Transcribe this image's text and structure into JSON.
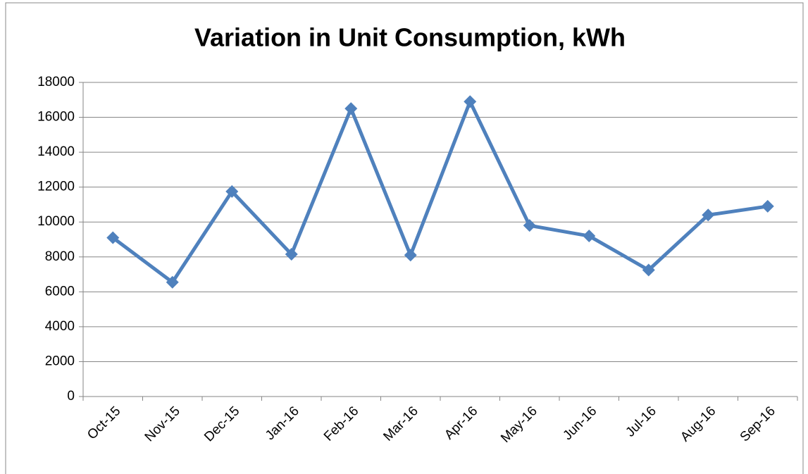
{
  "chart_data": {
    "type": "line",
    "title": "Variation in Unit Consumption, kWh",
    "categories": [
      "Oct-15",
      "Nov-15",
      "Dec-15",
      "Jan-16",
      "Feb-16",
      "Mar-16",
      "Apr-16",
      "May-16",
      "Jun-16",
      "Jul-16",
      "Aug-16",
      "Sep-16"
    ],
    "values": [
      9100,
      6550,
      11750,
      8150,
      16500,
      8100,
      16900,
      9800,
      9200,
      7250,
      10400,
      10900
    ],
    "color": "#4f81bd",
    "ylim": [
      0,
      18000
    ],
    "yticks": [
      0,
      2000,
      4000,
      6000,
      8000,
      10000,
      12000,
      14000,
      16000,
      18000
    ],
    "grid": true
  }
}
